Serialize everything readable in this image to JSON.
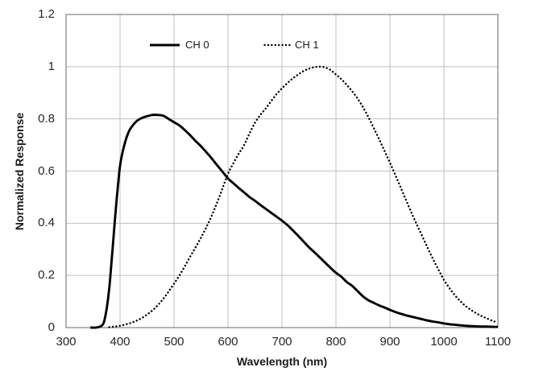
{
  "chart_data": {
    "type": "line",
    "title": "",
    "xlabel": "Wavelength (nm)",
    "ylabel": "Normalized Response",
    "xlim": [
      300,
      1100
    ],
    "ylim": [
      0,
      1.2
    ],
    "x_ticks": [
      300,
      400,
      500,
      600,
      700,
      800,
      900,
      1000,
      1100
    ],
    "x_tick_labels": [
      "300",
      "400",
      "500",
      "600",
      "700",
      "800",
      "900",
      "1000",
      "1100"
    ],
    "y_ticks": [
      0,
      0.2,
      0.4,
      0.6,
      0.8,
      1.0,
      1.2
    ],
    "y_tick_labels": [
      "0",
      "0.2",
      "0.4",
      "0.6",
      "0.8",
      "1",
      "1.2"
    ],
    "grid": true,
    "legend_position": "top-inside",
    "colors": {
      "curve": "#000000",
      "gridline": "#c0c0c0",
      "plot_border": "#808080",
      "text": "#262626"
    },
    "series": [
      {
        "name": "CH 0",
        "style": "solid",
        "color": "#000000",
        "points": [
          [
            345,
            0
          ],
          [
            350,
            0
          ],
          [
            355,
            0
          ],
          [
            360,
            0.002
          ],
          [
            365,
            0.006
          ],
          [
            370,
            0.02
          ],
          [
            375,
            0.07
          ],
          [
            380,
            0.15
          ],
          [
            385,
            0.27
          ],
          [
            390,
            0.4
          ],
          [
            395,
            0.52
          ],
          [
            400,
            0.62
          ],
          [
            405,
            0.675
          ],
          [
            410,
            0.715
          ],
          [
            415,
            0.745
          ],
          [
            420,
            0.765
          ],
          [
            430,
            0.79
          ],
          [
            440,
            0.803
          ],
          [
            450,
            0.81
          ],
          [
            460,
            0.815
          ],
          [
            470,
            0.815
          ],
          [
            480,
            0.812
          ],
          [
            490,
            0.8
          ],
          [
            500,
            0.787
          ],
          [
            510,
            0.775
          ],
          [
            520,
            0.757
          ],
          [
            530,
            0.737
          ],
          [
            540,
            0.715
          ],
          [
            550,
            0.695
          ],
          [
            560,
            0.672
          ],
          [
            570,
            0.648
          ],
          [
            580,
            0.622
          ],
          [
            590,
            0.597
          ],
          [
            600,
            0.572
          ],
          [
            610,
            0.553
          ],
          [
            620,
            0.535
          ],
          [
            630,
            0.518
          ],
          [
            640,
            0.5
          ],
          [
            650,
            0.486
          ],
          [
            660,
            0.47
          ],
          [
            670,
            0.455
          ],
          [
            680,
            0.44
          ],
          [
            690,
            0.425
          ],
          [
            700,
            0.41
          ],
          [
            710,
            0.393
          ],
          [
            720,
            0.373
          ],
          [
            730,
            0.352
          ],
          [
            740,
            0.33
          ],
          [
            750,
            0.308
          ],
          [
            760,
            0.289
          ],
          [
            770,
            0.269
          ],
          [
            780,
            0.249
          ],
          [
            790,
            0.229
          ],
          [
            800,
            0.21
          ],
          [
            810,
            0.195
          ],
          [
            820,
            0.175
          ],
          [
            830,
            0.16
          ],
          [
            840,
            0.14
          ],
          [
            850,
            0.12
          ],
          [
            860,
            0.105
          ],
          [
            870,
            0.095
          ],
          [
            880,
            0.085
          ],
          [
            890,
            0.077
          ],
          [
            900,
            0.068
          ],
          [
            910,
            0.06
          ],
          [
            920,
            0.053
          ],
          [
            930,
            0.047
          ],
          [
            940,
            0.042
          ],
          [
            950,
            0.037
          ],
          [
            960,
            0.032
          ],
          [
            970,
            0.027
          ],
          [
            980,
            0.023
          ],
          [
            990,
            0.02
          ],
          [
            1000,
            0.016
          ],
          [
            1010,
            0.013
          ],
          [
            1020,
            0.011
          ],
          [
            1030,
            0.009
          ],
          [
            1040,
            0.007
          ],
          [
            1050,
            0.006
          ],
          [
            1060,
            0.005
          ],
          [
            1070,
            0.004
          ],
          [
            1080,
            0.004
          ],
          [
            1090,
            0.003
          ],
          [
            1100,
            0.003
          ]
        ]
      },
      {
        "name": "CH 1",
        "style": "dotted",
        "color": "#000000",
        "points": [
          [
            380,
            0.002
          ],
          [
            390,
            0.004
          ],
          [
            400,
            0.007
          ],
          [
            410,
            0.012
          ],
          [
            420,
            0.018
          ],
          [
            430,
            0.026
          ],
          [
            440,
            0.036
          ],
          [
            450,
            0.05
          ],
          [
            460,
            0.066
          ],
          [
            470,
            0.086
          ],
          [
            480,
            0.11
          ],
          [
            490,
            0.138
          ],
          [
            500,
            0.168
          ],
          [
            510,
            0.2
          ],
          [
            520,
            0.235
          ],
          [
            530,
            0.272
          ],
          [
            540,
            0.308
          ],
          [
            550,
            0.345
          ],
          [
            560,
            0.385
          ],
          [
            570,
            0.43
          ],
          [
            580,
            0.48
          ],
          [
            590,
            0.535
          ],
          [
            600,
            0.59
          ],
          [
            610,
            0.63
          ],
          [
            620,
            0.667
          ],
          [
            630,
            0.7
          ],
          [
            640,
            0.745
          ],
          [
            650,
            0.785
          ],
          [
            660,
            0.815
          ],
          [
            670,
            0.84
          ],
          [
            680,
            0.868
          ],
          [
            690,
            0.895
          ],
          [
            700,
            0.917
          ],
          [
            710,
            0.937
          ],
          [
            720,
            0.955
          ],
          [
            730,
            0.97
          ],
          [
            740,
            0.983
          ],
          [
            750,
            0.992
          ],
          [
            760,
            0.998
          ],
          [
            770,
            1.0
          ],
          [
            780,
            0.997
          ],
          [
            790,
            0.987
          ],
          [
            800,
            0.97
          ],
          [
            810,
            0.952
          ],
          [
            820,
            0.93
          ],
          [
            830,
            0.906
          ],
          [
            840,
            0.878
          ],
          [
            850,
            0.845
          ],
          [
            860,
            0.807
          ],
          [
            870,
            0.765
          ],
          [
            880,
            0.722
          ],
          [
            890,
            0.677
          ],
          [
            900,
            0.632
          ],
          [
            910,
            0.585
          ],
          [
            920,
            0.537
          ],
          [
            930,
            0.488
          ],
          [
            940,
            0.44
          ],
          [
            950,
            0.394
          ],
          [
            960,
            0.35
          ],
          [
            970,
            0.305
          ],
          [
            980,
            0.262
          ],
          [
            990,
            0.222
          ],
          [
            1000,
            0.183
          ],
          [
            1010,
            0.152
          ],
          [
            1020,
            0.125
          ],
          [
            1030,
            0.102
          ],
          [
            1040,
            0.083
          ],
          [
            1050,
            0.068
          ],
          [
            1060,
            0.055
          ],
          [
            1070,
            0.044
          ],
          [
            1080,
            0.035
          ],
          [
            1090,
            0.026
          ],
          [
            1100,
            0.02
          ]
        ]
      }
    ]
  }
}
